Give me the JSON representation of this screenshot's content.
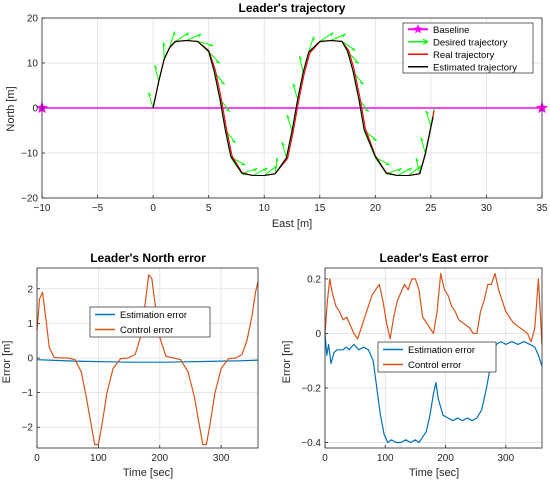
{
  "chart_data": [
    {
      "type": "line",
      "title": "Leader's trajectory",
      "xlabel": "East [m]",
      "ylabel": "North [m]",
      "xlim": [
        -10,
        35
      ],
      "ylim": [
        -20,
        20
      ],
      "x_ticks": [
        -10,
        -5,
        0,
        5,
        10,
        15,
        20,
        25,
        30,
        35
      ],
      "y_ticks": [
        -20,
        -10,
        0,
        10,
        20
      ],
      "x_tick_labels": [
        "−10",
        "−5",
        "0",
        "5",
        "10",
        "15",
        "20",
        "25",
        "30",
        "35"
      ],
      "y_tick_labels": [
        "−20",
        "−10",
        "0",
        "10",
        "20"
      ],
      "grid": true,
      "legend_position": "top-right",
      "colors": {
        "baseline": "#ff00ff",
        "desired": "#00ff00",
        "real": "#ff0000",
        "estimated": "#000000"
      },
      "series": [
        {
          "name": "Baseline",
          "x": [
            -10,
            35
          ],
          "y": [
            0,
            0
          ]
        },
        {
          "name": "Desired trajectory",
          "x": [
            0,
            0.5,
            1,
            1.5,
            2,
            3,
            4,
            5,
            5.5,
            6,
            6.5,
            7,
            8,
            9,
            10,
            11,
            12,
            12.5,
            13,
            13.5,
            14,
            15,
            16,
            17,
            17.5,
            18,
            18.5,
            19,
            20,
            21,
            22,
            23,
            24,
            24.5,
            25,
            25.3
          ],
          "y": [
            0,
            6,
            11,
            13.6,
            14.8,
            15,
            14.8,
            12.5,
            8,
            2,
            -5,
            -11,
            -14.6,
            -15,
            -15,
            -14.6,
            -11,
            -5,
            2,
            8,
            12.5,
            14.8,
            15,
            14.8,
            12.5,
            8,
            2,
            -5,
            -11,
            -14.6,
            -15,
            -15,
            -14.6,
            -10,
            -4,
            0
          ]
        },
        {
          "name": "Real trajectory",
          "x": [
            0,
            0.5,
            1,
            1.5,
            2,
            3,
            4,
            5,
            5.6,
            6.1,
            6.6,
            7.1,
            8,
            9,
            10,
            11,
            12.1,
            12.6,
            13.1,
            13.6,
            14.1,
            15,
            16,
            17,
            17.6,
            18.1,
            18.6,
            19.1,
            20,
            21,
            22,
            23,
            24,
            24.5,
            25,
            25.3
          ],
          "y": [
            0,
            5.8,
            10.8,
            13.4,
            14.7,
            15,
            14.8,
            12.8,
            8.5,
            2.5,
            -4.5,
            -10.6,
            -14.4,
            -15,
            -15,
            -14.6,
            -11.2,
            -5.4,
            1.6,
            7.6,
            12.2,
            14.7,
            15,
            14.8,
            12.8,
            8.5,
            2.5,
            -4.5,
            -10.6,
            -14.4,
            -15,
            -15,
            -14.6,
            -10.4,
            -4.4,
            -0.5
          ]
        },
        {
          "name": "Estimated trajectory",
          "x": [
            0,
            0.5,
            1,
            1.5,
            2,
            3,
            4,
            5,
            5.5,
            6,
            6.5,
            7,
            8,
            9,
            10,
            11,
            12,
            12.5,
            13,
            13.5,
            14,
            15,
            16,
            17,
            17.5,
            18,
            18.5,
            19,
            20,
            21,
            22,
            23,
            24,
            24.5,
            25,
            25.2
          ],
          "y": [
            0,
            5.9,
            10.9,
            13.5,
            14.8,
            15,
            14.8,
            12.6,
            8.2,
            2.2,
            -4.8,
            -10.8,
            -14.5,
            -15,
            -15,
            -14.6,
            -11.1,
            -5.2,
            1.8,
            7.8,
            12.4,
            14.8,
            15,
            14.8,
            12.6,
            8.2,
            2.2,
            -4.8,
            -10.8,
            -14.5,
            -15,
            -15,
            -14.6,
            -10.2,
            -4.2,
            -2
          ]
        }
      ]
    },
    {
      "type": "line",
      "title": "Leader's North error",
      "xlabel": "Time [sec]",
      "ylabel": "Error [m]",
      "xlim": [
        0,
        360
      ],
      "ylim": [
        -2.6,
        2.6
      ],
      "x_ticks": [
        0,
        100,
        200,
        300
      ],
      "y_ticks": [
        -2,
        -1,
        0,
        1,
        2
      ],
      "x_tick_labels": [
        "0",
        "100",
        "200",
        "300"
      ],
      "y_tick_labels": [
        "−2",
        "−1",
        "0",
        "1",
        "2"
      ],
      "grid": true,
      "legend_position": "center",
      "colors": {
        "estimation": "#0072bd",
        "control": "#d95319"
      },
      "series": [
        {
          "name": "Estimation error",
          "x": [
            0,
            30,
            60,
            90,
            120,
            150,
            180,
            210,
            240,
            270,
            300,
            330,
            360
          ],
          "y": [
            -0.05,
            -0.07,
            -0.09,
            -0.1,
            -0.11,
            -0.12,
            -0.12,
            -0.12,
            -0.11,
            -0.1,
            -0.09,
            -0.08,
            -0.06
          ]
        },
        {
          "name": "Control error",
          "x": [
            0,
            4,
            9,
            14,
            20,
            28,
            38,
            50,
            62,
            72,
            80,
            88,
            94,
            100,
            106,
            114,
            124,
            136,
            148,
            160,
            170,
            177,
            182,
            187,
            192,
            200,
            210,
            222,
            234,
            246,
            256,
            264,
            270,
            276,
            282,
            290,
            300,
            312,
            324,
            334,
            342,
            350,
            356,
            360
          ],
          "y": [
            0.8,
            1.7,
            1.9,
            1.2,
            0.3,
            0.02,
            0.0,
            0.0,
            -0.05,
            -0.4,
            -1.1,
            -1.9,
            -2.5,
            -2.5,
            -1.9,
            -1.0,
            -0.3,
            -0.02,
            0.0,
            0.1,
            0.7,
            1.7,
            2.4,
            2.3,
            1.6,
            0.6,
            0.05,
            0.0,
            -0.05,
            -0.4,
            -1.1,
            -1.9,
            -2.5,
            -2.5,
            -1.9,
            -1.0,
            -0.3,
            -0.02,
            0.0,
            0.1,
            0.5,
            1.2,
            1.9,
            2.2
          ]
        }
      ]
    },
    {
      "type": "line",
      "title": "Leader's East error",
      "xlabel": "Time [sec]",
      "ylabel": "Error [m]",
      "xlim": [
        0,
        360
      ],
      "ylim": [
        -0.42,
        0.24
      ],
      "x_ticks": [
        0,
        100,
        200,
        300
      ],
      "y_ticks": [
        -0.4,
        -0.2,
        0,
        0.2
      ],
      "x_tick_labels": [
        "0",
        "100",
        "200",
        "300"
      ],
      "y_tick_labels": [
        "−0.4",
        "−0.2",
        "0",
        "0.2"
      ],
      "grid": true,
      "legend_position": "center",
      "colors": {
        "estimation": "#0072bd",
        "control": "#d95319"
      },
      "series": [
        {
          "name": "Estimation error",
          "x": [
            0,
            3,
            6,
            10,
            15,
            20,
            25,
            30,
            35,
            40,
            48,
            56,
            64,
            72,
            80,
            86,
            92,
            98,
            104,
            110,
            118,
            126,
            134,
            142,
            150,
            156,
            162,
            168,
            174,
            180,
            184,
            188,
            196,
            204,
            212,
            220,
            228,
            236,
            244,
            252,
            260,
            268,
            276,
            284,
            292,
            300,
            310,
            320,
            330,
            340,
            348,
            354,
            360
          ],
          "y": [
            0,
            -0.08,
            -0.04,
            -0.11,
            -0.07,
            -0.06,
            -0.06,
            -0.06,
            -0.05,
            -0.06,
            -0.04,
            -0.06,
            -0.05,
            -0.06,
            -0.1,
            -0.2,
            -0.3,
            -0.37,
            -0.4,
            -0.39,
            -0.4,
            -0.4,
            -0.39,
            -0.4,
            -0.39,
            -0.4,
            -0.38,
            -0.36,
            -0.3,
            -0.22,
            -0.18,
            -0.24,
            -0.3,
            -0.31,
            -0.32,
            -0.31,
            -0.32,
            -0.31,
            -0.32,
            -0.31,
            -0.28,
            -0.2,
            -0.1,
            -0.04,
            -0.03,
            -0.04,
            -0.03,
            -0.04,
            -0.03,
            -0.04,
            -0.05,
            -0.08,
            -0.12
          ]
        },
        {
          "name": "Control error",
          "x": [
            0,
            4,
            8,
            12,
            18,
            24,
            30,
            36,
            42,
            48,
            54,
            60,
            66,
            72,
            78,
            84,
            90,
            96,
            102,
            108,
            114,
            120,
            126,
            132,
            138,
            144,
            150,
            156,
            162,
            168,
            174,
            180,
            186,
            192,
            198,
            204,
            210,
            216,
            222,
            228,
            234,
            240,
            246,
            252,
            258,
            264,
            270,
            276,
            282,
            288,
            294,
            300,
            306,
            312,
            318,
            324,
            330,
            336,
            342,
            348,
            354,
            360
          ],
          "y": [
            0.0,
            0.12,
            0.2,
            0.15,
            0.1,
            0.08,
            0.05,
            0.06,
            0.03,
            0.0,
            -0.02,
            0.02,
            0.06,
            0.1,
            0.14,
            0.16,
            0.18,
            0.12,
            0.04,
            -0.02,
            0.06,
            0.12,
            0.15,
            0.18,
            0.16,
            0.2,
            0.2,
            0.16,
            0.06,
            0.04,
            0.02,
            0.0,
            0.08,
            0.22,
            0.16,
            0.14,
            0.1,
            0.08,
            0.05,
            0.04,
            0.03,
            0.02,
            0.0,
            0.0,
            0.08,
            0.12,
            0.18,
            0.18,
            0.22,
            0.16,
            0.12,
            0.08,
            0.06,
            0.04,
            0.03,
            0.02,
            0.01,
            0.0,
            -0.03,
            0.02,
            0.2,
            -0.04
          ]
        }
      ]
    }
  ]
}
